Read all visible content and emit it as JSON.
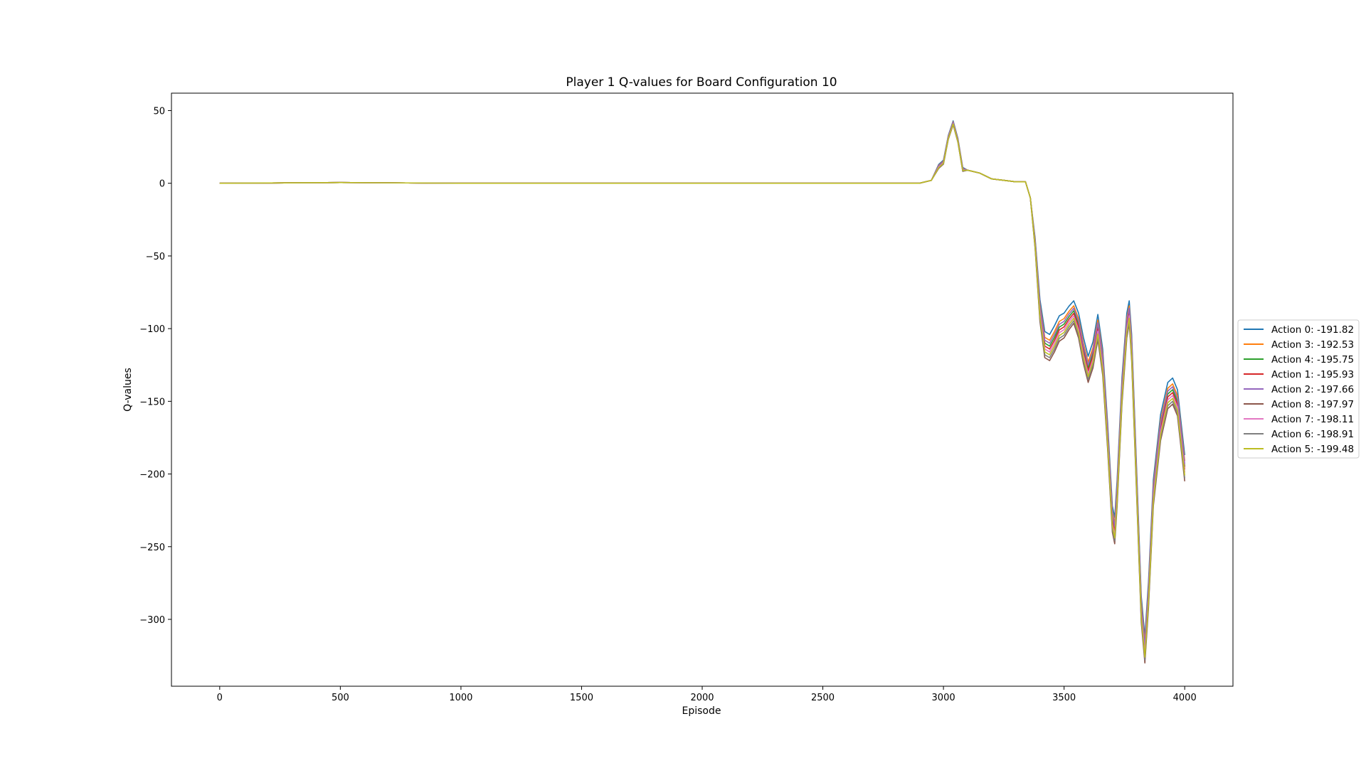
{
  "chart_data": {
    "type": "line",
    "title": "Player 1 Q-values for Board Configuration 10",
    "xlabel": "Episode",
    "ylabel": "Q-values",
    "xlim": [
      -200,
      4200
    ],
    "ylim": [
      -346,
      62
    ],
    "x_ticks": [
      "0",
      "500",
      "1000",
      "1500",
      "2000",
      "2500",
      "3000",
      "3500",
      "4000"
    ],
    "y_ticks": [
      "50",
      "0",
      "−50",
      "−100",
      "−150",
      "−200",
      "−250",
      "−300"
    ],
    "x_tick_values": [
      0,
      500,
      1000,
      1500,
      2000,
      2500,
      3000,
      3500,
      4000
    ],
    "y_tick_values": [
      50,
      0,
      -50,
      -100,
      -150,
      -200,
      -250,
      -300
    ],
    "grid": false,
    "legend_position": "outside-right",
    "x": [
      0,
      500,
      1000,
      1500,
      2000,
      2500,
      2900,
      2950,
      2980,
      3000,
      3020,
      3040,
      3060,
      3080,
      3100,
      3150,
      3200,
      3250,
      3300,
      3340,
      3360,
      3380,
      3400,
      3420,
      3440,
      3460,
      3480,
      3500,
      3520,
      3540,
      3560,
      3580,
      3600,
      3620,
      3640,
      3660,
      3680,
      3700,
      3710,
      3720,
      3740,
      3760,
      3770,
      3780,
      3800,
      3820,
      3835,
      3850,
      3870,
      3900,
      3930,
      3950,
      3970,
      4000
    ],
    "series": [
      {
        "name": "Action 0: -191.82",
        "color": "#1f77b4",
        "offset": 3
      },
      {
        "name": "Action 3: -192.53",
        "color": "#ff7f0e",
        "offset": 1
      },
      {
        "name": "Action 4: -195.75",
        "color": "#2ca02c",
        "offset": -1
      },
      {
        "name": "Action 1: -195.93",
        "color": "#d62728",
        "offset": -2
      },
      {
        "name": "Action 2: -197.66",
        "color": "#9467bd",
        "offset": 0
      },
      {
        "name": "Action 8: -197.97",
        "color": "#8c564b",
        "offset": -6
      },
      {
        "name": "Action 7: -198.11",
        "color": "#e377c2",
        "offset": -3
      },
      {
        "name": "Action 6: -198.91",
        "color": "#7f7f7f",
        "offset": -5
      },
      {
        "name": "Action 5: -199.48",
        "color": "#bcbd22",
        "offset": -4
      }
    ],
    "base_values": [
      0,
      0.5,
      0,
      0,
      0,
      0,
      0,
      2,
      12,
      15,
      32,
      42,
      30,
      10,
      9,
      7,
      3,
      2,
      1,
      1,
      -10,
      -40,
      -85,
      -108,
      -110,
      -104,
      -97,
      -95,
      -90,
      -86,
      -95,
      -112,
      -125,
      -115,
      -96,
      -120,
      -170,
      -228,
      -236,
      -210,
      -140,
      -95,
      -86,
      -110,
      -200,
      -290,
      -318,
      -280,
      -210,
      -165,
      -143,
      -140,
      -148,
      -193
    ]
  }
}
